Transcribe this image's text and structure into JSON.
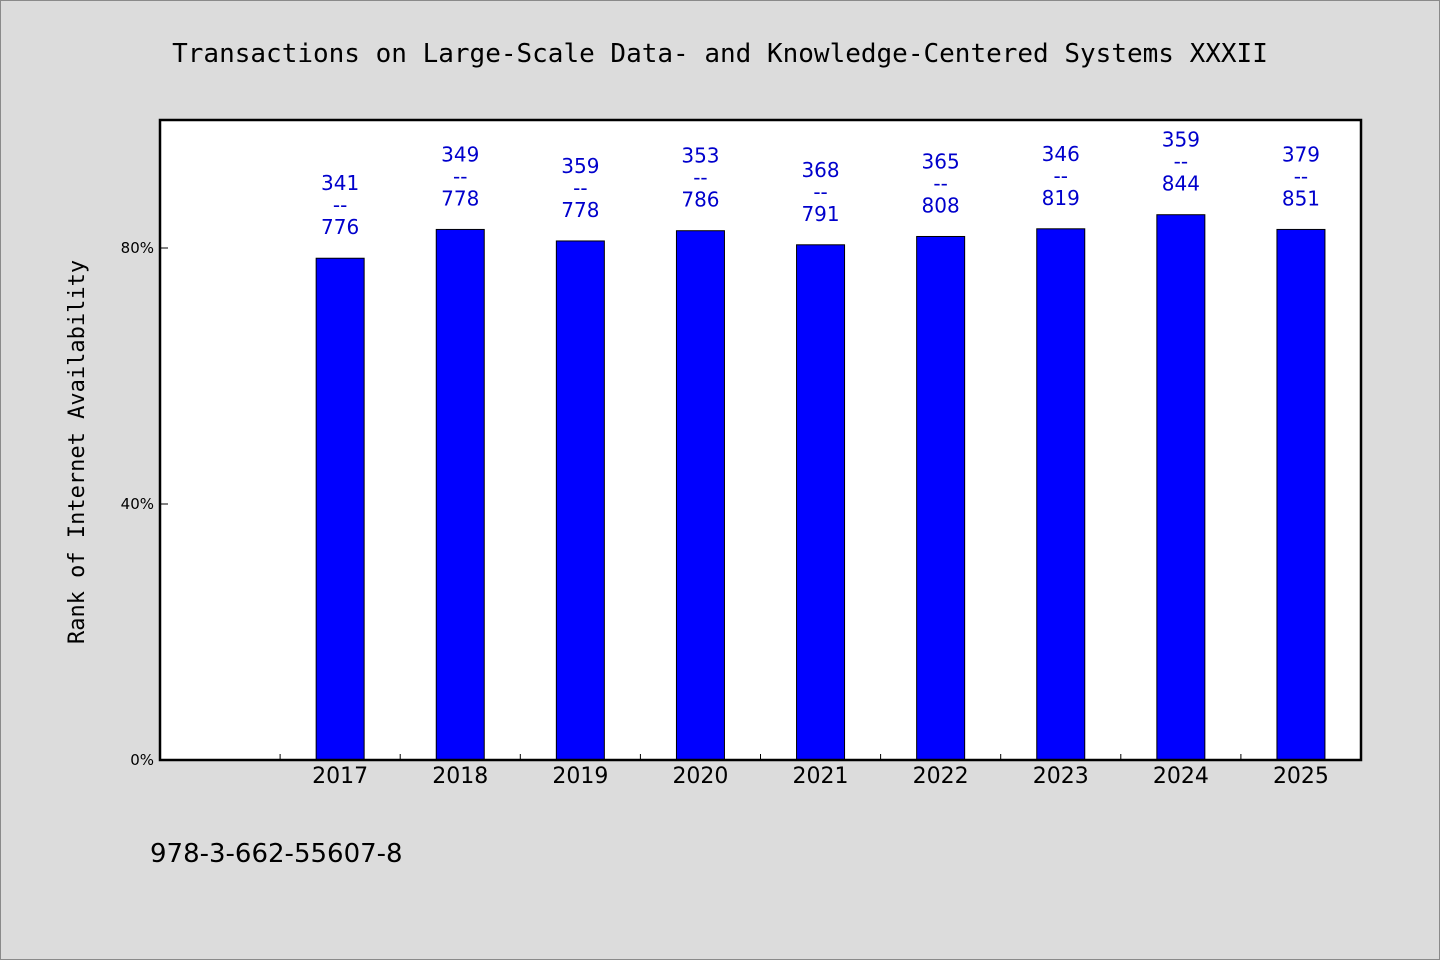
{
  "chart_data": {
    "type": "bar",
    "title": "Transactions on Large-Scale Data- and Knowledge-Centered Systems XXXII",
    "xlabel": "",
    "ylabel": "Rank of Internet Availability",
    "ylim": [
      0,
      100
    ],
    "yticks": [
      {
        "value": 0,
        "label": "0%"
      },
      {
        "value": 40,
        "label": "40%"
      },
      {
        "value": 80,
        "label": "80%"
      }
    ],
    "categories": [
      "2017",
      "2018",
      "2019",
      "2020",
      "2021",
      "2022",
      "2023",
      "2024",
      "2025"
    ],
    "values": [
      78.4,
      82.9,
      81.1,
      82.7,
      80.5,
      81.8,
      83.0,
      85.2,
      82.9
    ],
    "bar_labels": [
      {
        "top": "341",
        "sep": "--",
        "bottom": "776"
      },
      {
        "top": "349",
        "sep": "--",
        "bottom": "778"
      },
      {
        "top": "359",
        "sep": "--",
        "bottom": "778"
      },
      {
        "top": "353",
        "sep": "--",
        "bottom": "786"
      },
      {
        "top": "368",
        "sep": "--",
        "bottom": "791"
      },
      {
        "top": "365",
        "sep": "--",
        "bottom": "808"
      },
      {
        "top": "346",
        "sep": "--",
        "bottom": "819"
      },
      {
        "top": "359",
        "sep": "--",
        "bottom": "844"
      },
      {
        "top": "379",
        "sep": "--",
        "bottom": "851"
      }
    ],
    "bar_color": "#0000ff",
    "label_color": "#0000cc",
    "plot_background": "#ffffff",
    "grid": false,
    "legend": "none"
  },
  "footer": {
    "isbn": "978-3-662-55607-8"
  }
}
